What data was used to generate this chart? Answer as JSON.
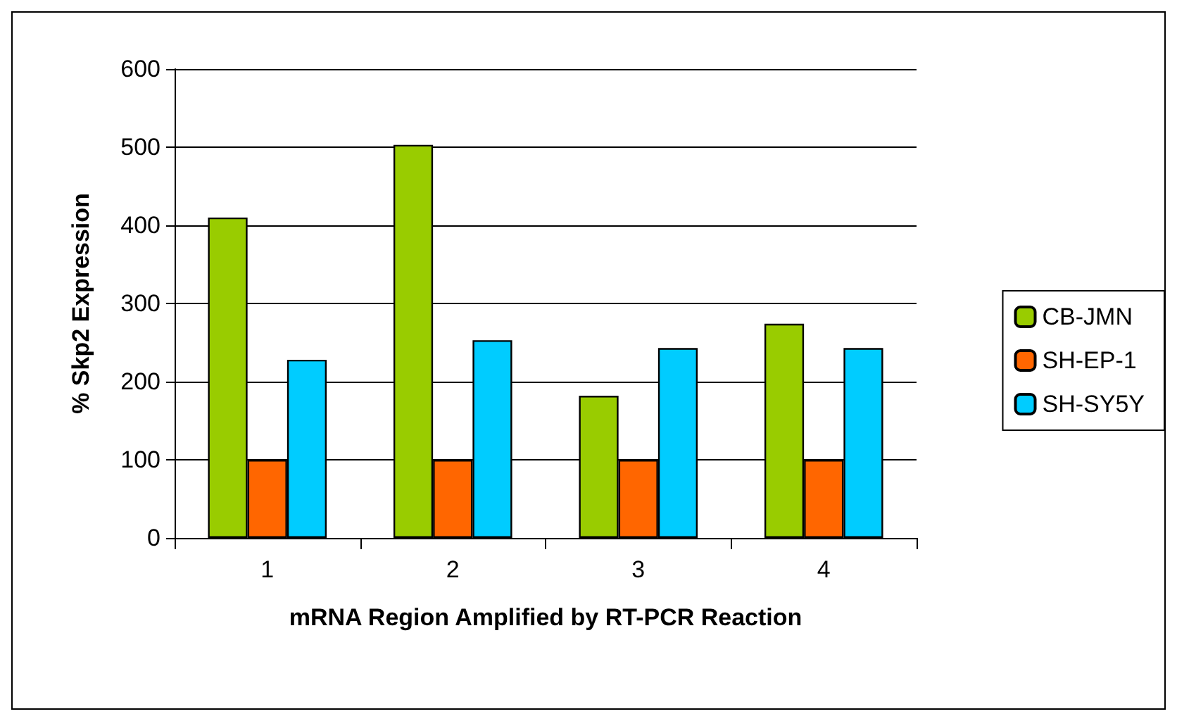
{
  "chart_data": {
    "type": "bar",
    "xlabel": "mRNA Region Amplified by RT-PCR Reaction",
    "ylabel": "% Skp2 Expression",
    "categories": [
      "1",
      "2",
      "3",
      "4"
    ],
    "series": [
      {
        "name": "CB-JMN",
        "color": "#99cc00",
        "values": [
          410,
          503,
          182,
          274
        ]
      },
      {
        "name": "SH-EP-1",
        "color": "#ff6600",
        "values": [
          100,
          100,
          100,
          100
        ]
      },
      {
        "name": "SH-SY5Y",
        "color": "#00ccff",
        "values": [
          228,
          253,
          243,
          243
        ]
      }
    ],
    "ylim": [
      0,
      600
    ],
    "yticks": [
      0,
      100,
      200,
      300,
      400,
      500,
      600
    ],
    "grid": "y",
    "legend": "right"
  }
}
